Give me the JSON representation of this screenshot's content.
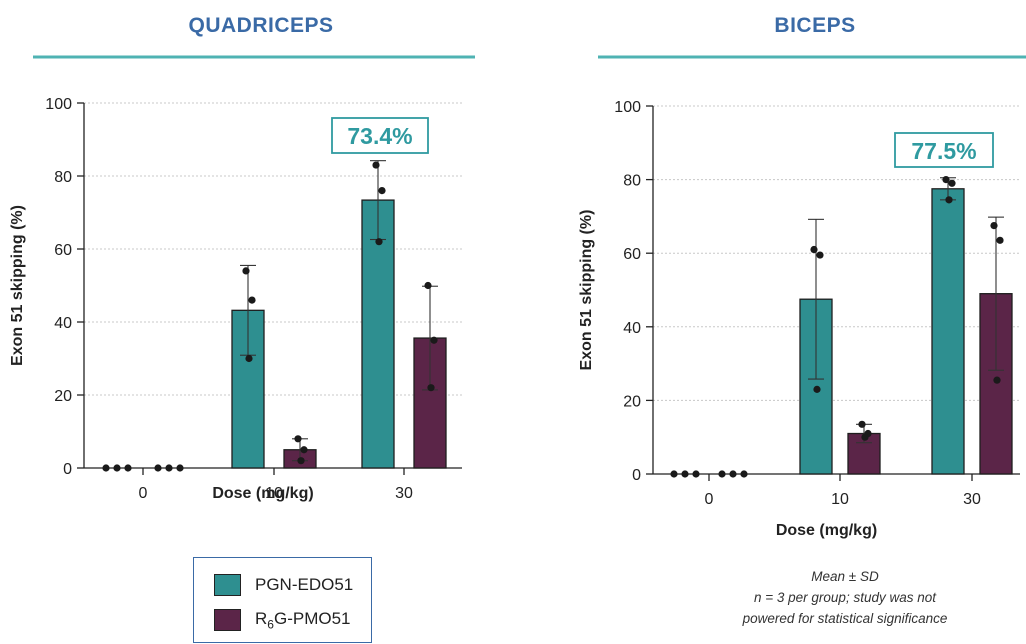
{
  "chart_data": [
    {
      "type": "bar",
      "title": "QUADRICEPS",
      "xlabel": "Dose (mg/kg)",
      "ylabel": "Exon 51 skipping (%)",
      "ylim": [
        0,
        100
      ],
      "yticks": [
        "0",
        "20",
        "40",
        "60",
        "80",
        "100"
      ],
      "categories": [
        "0",
        "10",
        "30"
      ],
      "grid": "horizontal dotted",
      "series": [
        {
          "name": "PGN-EDO51",
          "values": [
            0,
            43.2,
            73.4
          ],
          "sd": [
            0,
            12.3,
            10.8
          ],
          "points": [
            [
              0,
              0,
              0
            ],
            [
              54,
              46,
              30
            ],
            [
              83,
              76,
              62
            ]
          ]
        },
        {
          "name": "R6G-PMO51",
          "values": [
            0,
            5,
            35.6
          ],
          "sd": [
            0,
            3,
            14.2
          ],
          "points": [
            [
              0,
              0,
              0
            ],
            [
              8,
              5,
              2
            ],
            [
              50,
              35,
              22
            ]
          ]
        }
      ],
      "annotation": "73.4%"
    },
    {
      "type": "bar",
      "title": "BICEPS",
      "xlabel": "Dose (mg/kg)",
      "ylabel": "Exon 51 skipping (%)",
      "ylim": [
        0,
        100
      ],
      "yticks": [
        "0",
        "20",
        "40",
        "60",
        "80",
        "100"
      ],
      "categories": [
        "0",
        "10",
        "30"
      ],
      "grid": "horizontal dotted",
      "series": [
        {
          "name": "PGN-EDO51",
          "values": [
            0,
            47.5,
            77.5
          ],
          "sd": [
            0,
            21.7,
            3
          ],
          "points": [
            [
              0,
              0,
              0
            ],
            [
              61,
              59.5,
              23
            ],
            [
              80,
              79,
              74.5
            ]
          ]
        },
        {
          "name": "R6G-PMO51",
          "values": [
            0,
            11,
            49
          ],
          "sd": [
            0,
            2.5,
            20.8
          ],
          "points": [
            [
              0,
              0,
              0
            ],
            [
              13.5,
              11,
              10
            ],
            [
              67.5,
              63.5,
              25.5
            ]
          ]
        }
      ],
      "annotation": "77.5%"
    }
  ],
  "legend": {
    "items": [
      {
        "label": "PGN-EDO51",
        "color": "#2e8f90"
      },
      {
        "label_main": "R",
        "label_sub": "6",
        "label_rest": "G-PMO51",
        "color": "#5b2548"
      }
    ]
  },
  "footnote": {
    "line1": "Mean ± SD",
    "line2": "n = 3 per group; study was not",
    "line3": "powered for statistical significance"
  },
  "colors": {
    "title": "#3a6aa6",
    "title_rule": "#4fb3b3",
    "annotation": "#2f9aa0",
    "teal_bar": "#2e8f90",
    "purple_bar": "#5b2548"
  }
}
